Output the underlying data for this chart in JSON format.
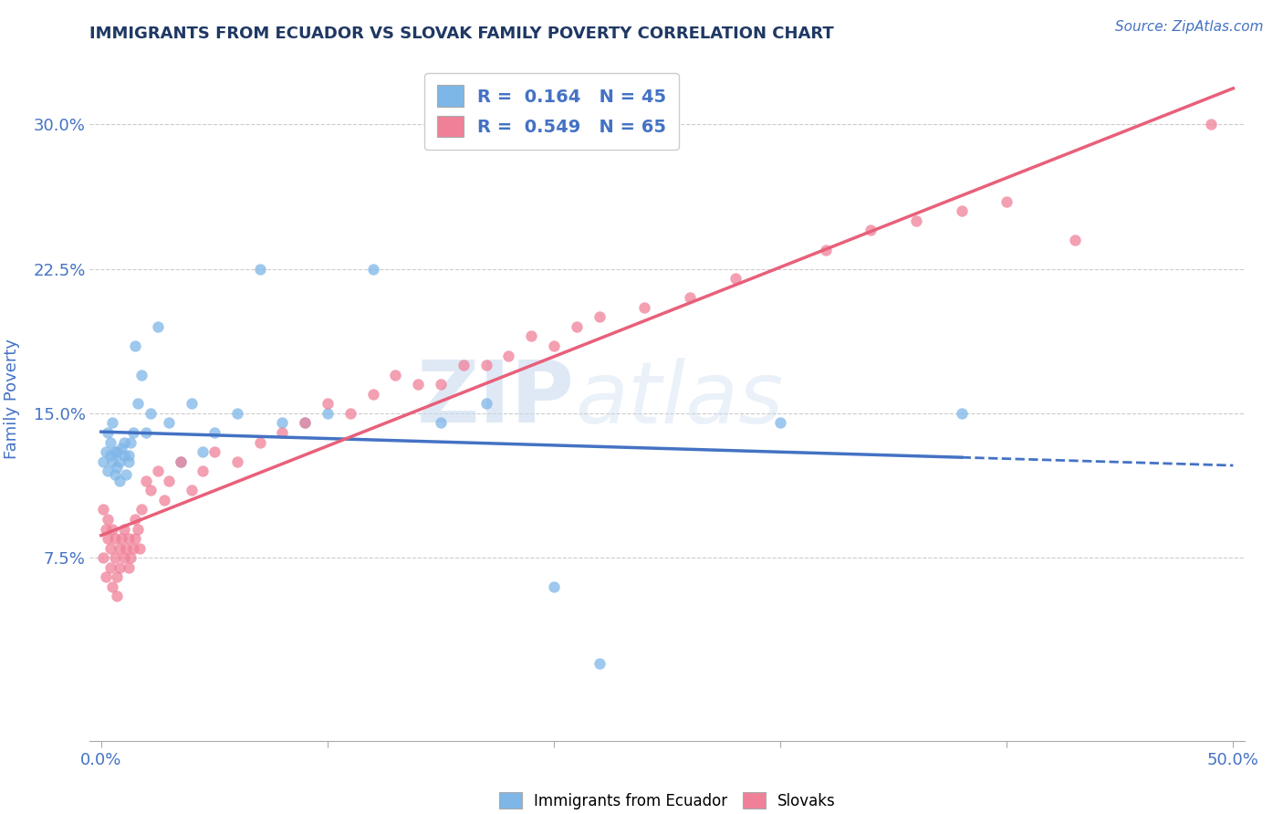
{
  "title": "IMMIGRANTS FROM ECUADOR VS SLOVAK FAMILY POVERTY CORRELATION CHART",
  "source": "Source: ZipAtlas.com",
  "ylabel": "Family Poverty",
  "xlim": [
    -0.005,
    0.505
  ],
  "ylim": [
    -0.02,
    0.335
  ],
  "xticks": [
    0.0,
    0.1,
    0.2,
    0.3,
    0.4,
    0.5
  ],
  "xticklabels": [
    "0.0%",
    "",
    "",
    "",
    "",
    "50.0%"
  ],
  "yticks": [
    0.075,
    0.15,
    0.225,
    0.3
  ],
  "yticklabels": [
    "7.5%",
    "15.0%",
    "22.5%",
    "30.0%"
  ],
  "legend_r1": "R =  0.164   N = 45",
  "legend_r2": "R =  0.549   N = 65",
  "color_ecuador": "#7EB6E8",
  "color_slovak": "#F08098",
  "color_trendline_ecuador": "#4472C4",
  "color_trendline_slovak": "#E8607A",
  "color_axis_labels": "#4472C4",
  "color_title": "#1F3864",
  "background_color": "#FFFFFF",
  "watermark_zip": "ZIP",
  "watermark_atlas": "atlas",
  "ecuador_x": [
    0.001,
    0.002,
    0.003,
    0.003,
    0.004,
    0.004,
    0.005,
    0.005,
    0.006,
    0.006,
    0.007,
    0.007,
    0.008,
    0.008,
    0.009,
    0.01,
    0.01,
    0.011,
    0.012,
    0.012,
    0.013,
    0.014,
    0.015,
    0.016,
    0.018,
    0.02,
    0.022,
    0.025,
    0.03,
    0.035,
    0.04,
    0.045,
    0.05,
    0.06,
    0.07,
    0.08,
    0.09,
    0.1,
    0.12,
    0.15,
    0.17,
    0.2,
    0.22,
    0.3,
    0.38
  ],
  "ecuador_y": [
    0.125,
    0.13,
    0.12,
    0.14,
    0.128,
    0.135,
    0.145,
    0.125,
    0.13,
    0.118,
    0.122,
    0.13,
    0.115,
    0.125,
    0.132,
    0.128,
    0.135,
    0.118,
    0.125,
    0.128,
    0.135,
    0.14,
    0.185,
    0.155,
    0.17,
    0.14,
    0.15,
    0.195,
    0.145,
    0.125,
    0.155,
    0.13,
    0.14,
    0.15,
    0.225,
    0.145,
    0.145,
    0.15,
    0.225,
    0.145,
    0.155,
    0.06,
    0.02,
    0.145,
    0.15
  ],
  "slovak_x": [
    0.001,
    0.001,
    0.002,
    0.002,
    0.003,
    0.003,
    0.004,
    0.004,
    0.005,
    0.005,
    0.006,
    0.006,
    0.007,
    0.007,
    0.008,
    0.008,
    0.009,
    0.01,
    0.01,
    0.011,
    0.012,
    0.012,
    0.013,
    0.014,
    0.015,
    0.015,
    0.016,
    0.017,
    0.018,
    0.02,
    0.022,
    0.025,
    0.028,
    0.03,
    0.035,
    0.04,
    0.045,
    0.05,
    0.06,
    0.07,
    0.08,
    0.09,
    0.1,
    0.11,
    0.12,
    0.13,
    0.14,
    0.15,
    0.16,
    0.17,
    0.18,
    0.19,
    0.2,
    0.21,
    0.22,
    0.24,
    0.26,
    0.28,
    0.32,
    0.34,
    0.36,
    0.38,
    0.4,
    0.43,
    0.49
  ],
  "slovak_y": [
    0.1,
    0.075,
    0.09,
    0.065,
    0.085,
    0.095,
    0.07,
    0.08,
    0.06,
    0.09,
    0.075,
    0.085,
    0.055,
    0.065,
    0.07,
    0.08,
    0.085,
    0.075,
    0.09,
    0.08,
    0.07,
    0.085,
    0.075,
    0.08,
    0.095,
    0.085,
    0.09,
    0.08,
    0.1,
    0.115,
    0.11,
    0.12,
    0.105,
    0.115,
    0.125,
    0.11,
    0.12,
    0.13,
    0.125,
    0.135,
    0.14,
    0.145,
    0.155,
    0.15,
    0.16,
    0.17,
    0.165,
    0.165,
    0.175,
    0.175,
    0.18,
    0.19,
    0.185,
    0.195,
    0.2,
    0.205,
    0.21,
    0.22,
    0.235,
    0.245,
    0.25,
    0.255,
    0.26,
    0.24,
    0.3
  ]
}
